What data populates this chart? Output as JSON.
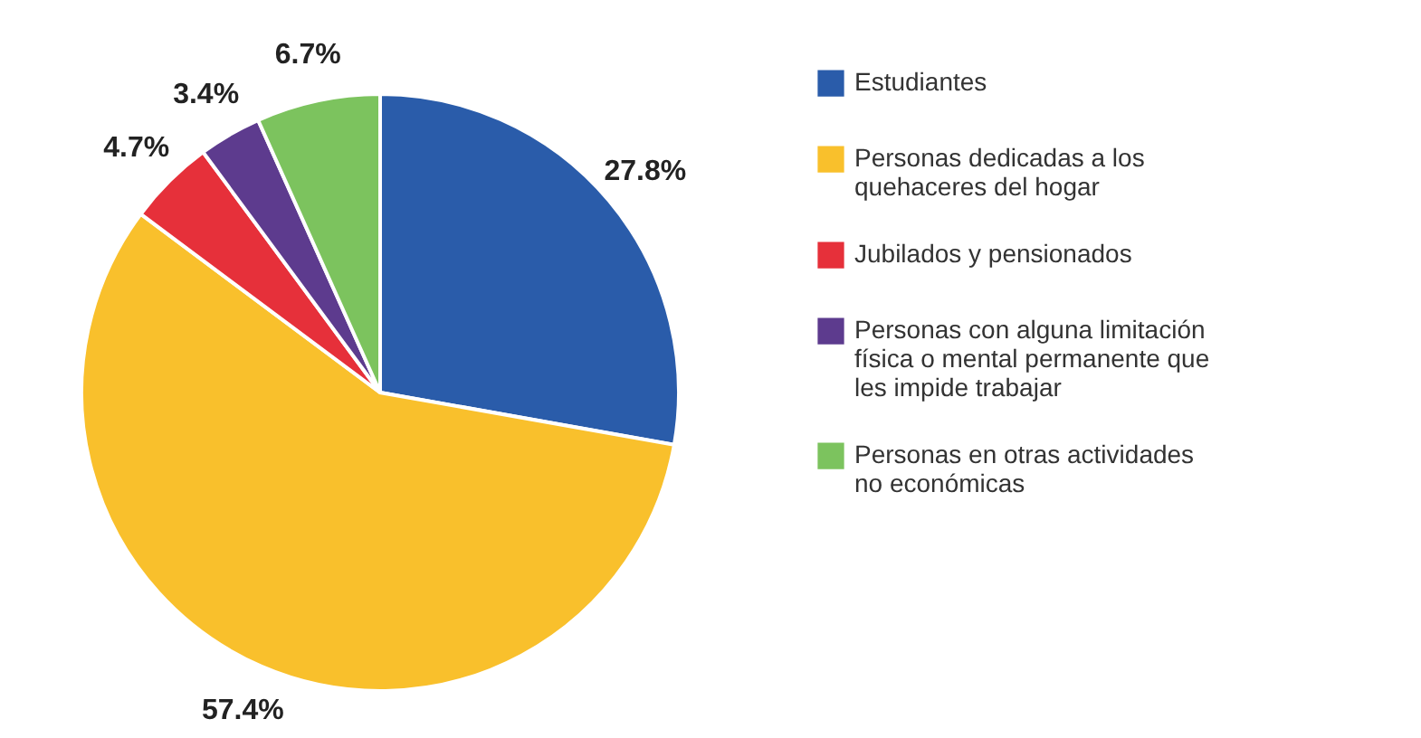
{
  "chart_data": {
    "type": "pie",
    "categories": [
      "Estudiantes",
      "Personas dedicadas a los quehaceres del hogar",
      "Jubilados y pensionados",
      "Personas con alguna limitación física o mental permanente que les impide trabajar",
      "Personas en otras actividades no económicas"
    ],
    "values": [
      27.8,
      57.4,
      4.7,
      3.4,
      6.7
    ],
    "value_labels": [
      "27.8%",
      "57.4%",
      "4.7%",
      "3.4%",
      "6.7%"
    ],
    "colors": [
      "#2a5caa",
      "#f9c02c",
      "#e6303a",
      "#5d3b8e",
      "#7cc35e"
    ],
    "legend": "right"
  }
}
